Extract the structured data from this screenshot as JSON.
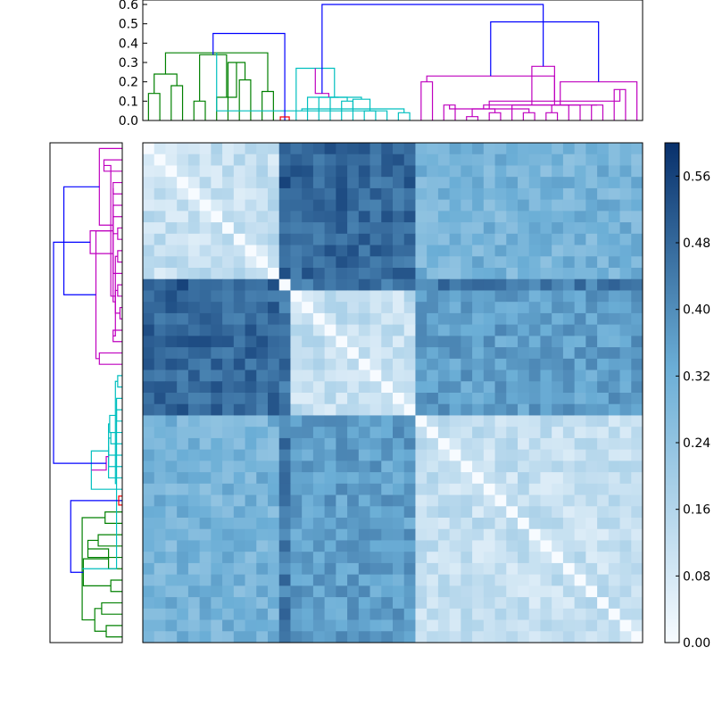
{
  "colors": {
    "cluster_green": "#008000",
    "cluster_red": "#ff0000",
    "cluster_cyan": "#00bfbf",
    "cluster_magenta": "#bf00bf",
    "link_above_threshold": "#0000ff",
    "cmap_low": "#f7fbff",
    "cmap_mid": "#6baed6",
    "cmap_high": "#08306b"
  },
  "chart_data": [
    {
      "type": "heatmap",
      "name": "distance-matrix",
      "n_leaves": 44,
      "leaf_order": [
        0,
        1,
        2,
        3,
        4,
        5,
        6,
        7,
        8,
        9,
        10,
        11,
        12,
        13,
        14,
        15,
        16,
        17,
        18,
        19,
        20,
        21,
        22,
        23,
        24,
        25,
        26,
        27,
        28,
        29,
        30,
        31,
        32,
        33,
        34,
        35,
        36,
        37,
        38,
        39,
        40,
        41,
        42,
        43
      ],
      "clusters": [
        {
          "color_key": "cluster_green",
          "leaves": [
            0,
            11
          ]
        },
        {
          "color_key": "cluster_red",
          "leaves": [
            12,
            12
          ]
        },
        {
          "color_key": "cluster_cyan",
          "leaves": [
            13,
            23
          ]
        },
        {
          "color_key": "cluster_magenta",
          "leaves": [
            24,
            43
          ]
        }
      ],
      "within_cluster_distance": 0.12,
      "between_cluster_distance": {
        "green-red": 0.5,
        "green-cyan": 0.48,
        "green-magenta": 0.3,
        "red-cyan": 0.46,
        "red-magenta": 0.44,
        "cyan-magenta": 0.36
      },
      "colorbar": {
        "min": 0.0,
        "max": 0.6,
        "ticks": [
          "0.00",
          "0.08",
          "0.16",
          "0.24",
          "0.32",
          "0.40",
          "0.48",
          "0.56"
        ]
      }
    },
    {
      "type": "dendrogram",
      "name": "column-dendrogram",
      "orientation": "top",
      "ylim": [
        0,
        0.6
      ],
      "yticks": [
        "0.0",
        "0.1",
        "0.2",
        "0.3",
        "0.4",
        "0.5",
        "0.6"
      ],
      "links": [
        {
          "a": 0,
          "b": 1,
          "h": 0.14,
          "c": "cluster_green"
        },
        {
          "a": 2,
          "b": 3,
          "h": 0.18,
          "c": "cluster_green"
        },
        {
          "a": 10,
          "b": 11,
          "h": 0.15,
          "c": "cluster_green"
        },
        {
          "a": 8,
          "b": 9,
          "h": 0.21,
          "c": "cluster_green"
        },
        {
          "a": 7,
          "b": 47,
          "h": 0.3,
          "c": "cluster_green"
        },
        {
          "a": 4,
          "b": 5,
          "h": 0.1,
          "c": "cluster_green"
        },
        {
          "a": 6,
          "b": 48,
          "h": 0.12,
          "c": "cluster_green"
        },
        {
          "a": 44,
          "b": 45,
          "h": 0.24,
          "c": "cluster_green"
        },
        {
          "a": 49,
          "b": 50,
          "h": 0.34,
          "c": "cluster_green"
        },
        {
          "a": 51,
          "b": 46,
          "h": 0.35,
          "c": "cluster_green"
        },
        {
          "a": 22,
          "b": 23,
          "h": 0.04,
          "c": "cluster_cyan"
        },
        {
          "a": 21,
          "b": 53,
          "h": 0.05,
          "c": "cluster_cyan"
        },
        {
          "a": 19,
          "b": 20,
          "h": 0.05,
          "c": "cluster_cyan"
        },
        {
          "a": 55,
          "b": 54,
          "h": 0.06,
          "c": "cluster_cyan"
        },
        {
          "a": 17,
          "b": 18,
          "h": 0.1,
          "c": "cluster_cyan"
        },
        {
          "a": 57,
          "b": 56,
          "h": 0.11,
          "c": "cluster_cyan"
        },
        {
          "a": 16,
          "b": 58,
          "h": 0.12,
          "c": "cluster_cyan"
        },
        {
          "a": 14,
          "b": 59,
          "h": 0.12,
          "c": "cluster_cyan"
        },
        {
          "a": 15,
          "b": 60,
          "h": 0.12,
          "c": "cluster_cyan"
        },
        {
          "a": 13,
          "b": 61,
          "h": 0.27,
          "c": "cluster_cyan"
        },
        {
          "a": 24,
          "b": 25,
          "h": 0.2,
          "c": "cluster_magenta"
        },
        {
          "a": 26,
          "b": 27,
          "h": 0.08,
          "c": "cluster_magenta"
        },
        {
          "a": 28,
          "b": 29,
          "h": 0.02,
          "c": "cluster_magenta"
        },
        {
          "a": 30,
          "b": 31,
          "h": 0.04,
          "c": "cluster_magenta"
        },
        {
          "a": 33,
          "b": 34,
          "h": 0.04,
          "c": "cluster_magenta"
        },
        {
          "a": 35,
          "b": 36,
          "h": 0.04,
          "c": "cluster_magenta"
        },
        {
          "a": 39,
          "b": 40,
          "h": 0.08,
          "c": "cluster_magenta"
        },
        {
          "a": 41,
          "b": 42,
          "h": 0.16,
          "c": "cluster_magenta"
        },
        {
          "a": 66,
          "b": 67,
          "h": 0.06,
          "c": "cluster_magenta"
        },
        {
          "a": 65,
          "b": 68,
          "h": 0.06,
          "c": "cluster_magenta"
        },
        {
          "a": 69,
          "b": 37,
          "h": 0.08,
          "c": "cluster_magenta"
        },
        {
          "a": 32,
          "b": 70,
          "h": 0.08,
          "c": "cluster_magenta"
        },
        {
          "a": 38,
          "b": 72,
          "h": 0.08,
          "c": "cluster_magenta"
        },
        {
          "a": 71,
          "b": 73,
          "h": 0.1,
          "c": "cluster_magenta"
        },
        {
          "a": 74,
          "b": 43,
          "h": 0.2,
          "c": "cluster_magenta"
        },
        {
          "a": 75,
          "b": 64,
          "h": 0.23,
          "c": "cluster_magenta"
        },
        {
          "a": 62,
          "b": 63,
          "h": 0.14,
          "c": "cluster_magenta"
        },
        {
          "a": 76,
          "b": 77,
          "h": 0.28,
          "c": "cluster_magenta"
        },
        {
          "a": 12,
          "b": 52,
          "h": 0.45,
          "c": "link_above_threshold"
        },
        {
          "a": 79,
          "b": 78,
          "h": 0.51,
          "c": "link_above_threshold"
        },
        {
          "a": 80,
          "b": 81,
          "h": 0.6,
          "c": "link_above_threshold"
        }
      ]
    }
  ]
}
